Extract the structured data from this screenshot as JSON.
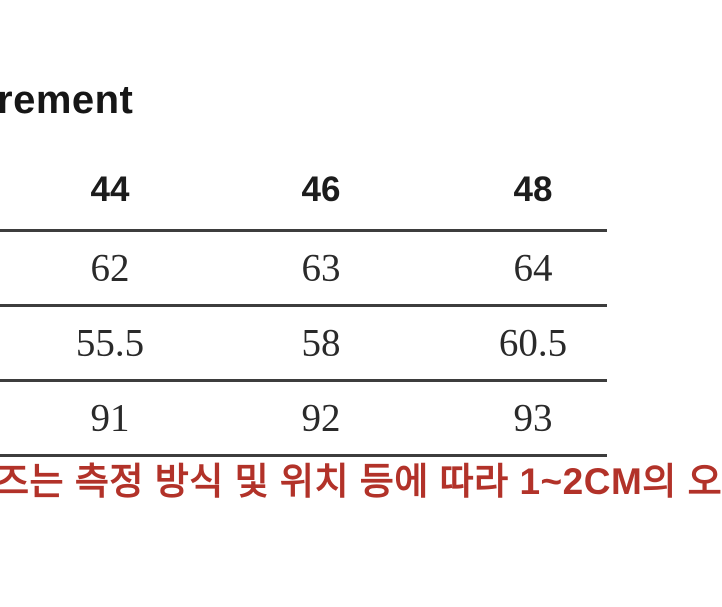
{
  "header": {
    "title_fragment": "rement"
  },
  "size_table": {
    "column_headers": [
      "44",
      "46",
      "48"
    ],
    "rows": [
      [
        "62",
        "63",
        "64"
      ],
      [
        "55.5",
        "58",
        "60.5"
      ],
      [
        "91",
        "92",
        "93"
      ]
    ]
  },
  "notice": {
    "text": "즈는 측정 방식 및 위치 등에 따라 1~2CM의 오",
    "color": "#b23229"
  },
  "colors": {
    "rule": "#3d3d3d",
    "heading_text": "#1c1c1c",
    "value_text": "#2a2a2a",
    "background": "#ffffff"
  }
}
